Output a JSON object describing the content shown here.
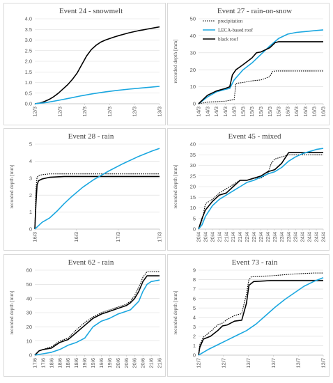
{
  "colors": {
    "precipitation": "#000000",
    "leca": "#1aa7e0",
    "black": "#000000",
    "grid": "#d9d9d9"
  },
  "chart_data": [
    {
      "type": "line",
      "title": "Event 24 - snowmelt",
      "ylabel": "",
      "ylim": [
        0,
        4
      ],
      "yticks": [
        "0.0",
        "0.5",
        "1.0",
        "1.5",
        "2.0",
        "2.5",
        "3.0",
        "3.5",
        "4.0"
      ],
      "xticks": [
        "12/3",
        "12/3",
        "12/3",
        "12/3",
        "12/3",
        "13/3"
      ],
      "legend": [],
      "series": [
        {
          "name": "",
          "key": "black",
          "style": "solid",
          "x": [
            0,
            0.2,
            0.4,
            0.6,
            0.8,
            1.0,
            1.2,
            1.4,
            1.6,
            1.8,
            2.0,
            2.2,
            2.4,
            2.6,
            2.8,
            3.0,
            3.2,
            3.4,
            3.6,
            3.8,
            4.0,
            4.2,
            4.4,
            4.6,
            4.8,
            5.0,
            5.3
          ],
          "y": [
            0,
            0.03,
            0.1,
            0.2,
            0.33,
            0.5,
            0.7,
            0.9,
            1.15,
            1.45,
            1.85,
            2.25,
            2.55,
            2.75,
            2.9,
            3.0,
            3.08,
            3.15,
            3.22,
            3.28,
            3.34,
            3.39,
            3.44,
            3.48,
            3.52,
            3.56,
            3.62
          ]
        },
        {
          "name": "",
          "key": "leca",
          "style": "solid",
          "x": [
            0,
            0.5,
            1.0,
            1.5,
            2.0,
            2.5,
            3.0,
            3.5,
            4.0,
            4.5,
            5.0,
            5.3
          ],
          "y": [
            0,
            0.06,
            0.16,
            0.27,
            0.38,
            0.48,
            0.56,
            0.63,
            0.69,
            0.74,
            0.79,
            0.82
          ]
        }
      ]
    },
    {
      "type": "line",
      "title": "Event 27 - rain-on-snow",
      "ylabel": "recorded depth [mm]",
      "ylim": [
        0,
        50
      ],
      "yticks": [
        "0",
        "10",
        "20",
        "30",
        "40",
        "50"
      ],
      "xticks": [
        "14/3",
        "14/3",
        "14/3",
        "14/3",
        "14/3",
        "15/3",
        "15/3",
        "15/3",
        "15/3",
        "15/3",
        "16/3",
        "16/3",
        "16/3",
        "16/3",
        "16/3"
      ],
      "legend": [
        "precipitation",
        "LECA-based roof",
        "black roof"
      ],
      "series": [
        {
          "name": "precipitation",
          "key": "precipitation",
          "style": "dotted",
          "x": [
            0,
            1,
            2,
            3,
            3.5,
            4.0,
            4.2,
            5,
            6,
            7,
            8,
            8.3,
            8.7,
            9,
            10,
            14
          ],
          "y": [
            0,
            1,
            1.2,
            1.5,
            2,
            2.5,
            12,
            12.5,
            13.5,
            14,
            16,
            19,
            19.3,
            19.3,
            19.3,
            19.3
          ]
        },
        {
          "name": "LECA-based roof",
          "key": "leca",
          "style": "solid",
          "x": [
            0,
            1,
            2,
            3,
            3.5,
            4,
            4.5,
            5,
            6,
            7,
            8,
            9,
            10,
            11,
            12,
            13,
            14
          ],
          "y": [
            0,
            4,
            7,
            8.5,
            9,
            14,
            17,
            20,
            24,
            29,
            34,
            38.5,
            41,
            42,
            42.5,
            43,
            43.5
          ]
        },
        {
          "name": "black roof",
          "key": "black",
          "style": "solid",
          "x": [
            0,
            1,
            2,
            3,
            3.5,
            3.8,
            4.2,
            5,
            6,
            6.5,
            7,
            8,
            8.6,
            9,
            10,
            11,
            12,
            13,
            14
          ],
          "y": [
            0,
            5,
            7.5,
            9,
            10,
            17,
            20,
            23,
            27,
            30,
            30.5,
            33,
            36,
            36.5,
            36.5,
            36.5,
            36.5,
            36.5,
            36.5
          ]
        }
      ]
    },
    {
      "type": "line",
      "title": "Event 28 - rain",
      "ylabel": "recorded depth [mm]",
      "ylim": [
        0,
        5
      ],
      "yticks": [
        "0",
        "1",
        "2",
        "3",
        "4",
        "5"
      ],
      "xticks": [
        "16/3",
        "16/3",
        "17/3",
        "17/3"
      ],
      "legend": [],
      "series": [
        {
          "name": "",
          "key": "precipitation",
          "style": "dotted",
          "x": [
            0,
            0.03,
            0.06,
            0.1,
            0.2,
            0.4,
            3.4
          ],
          "y": [
            0,
            2.4,
            3.05,
            3.15,
            3.2,
            3.25,
            3.25
          ]
        },
        {
          "name": "",
          "key": "black",
          "style": "solid",
          "x": [
            0,
            0.03,
            0.06,
            0.1,
            0.2,
            0.4,
            0.8,
            3.4
          ],
          "y": [
            0,
            1.5,
            2.6,
            2.85,
            2.95,
            3.05,
            3.1,
            3.1
          ]
        },
        {
          "name": "",
          "key": "leca",
          "style": "solid",
          "x": [
            0,
            0.2,
            0.4,
            0.6,
            0.8,
            1.0,
            1.3,
            1.6,
            2.0,
            2.4,
            2.8,
            3.2,
            3.4
          ],
          "y": [
            0,
            0.4,
            0.65,
            1.05,
            1.5,
            1.9,
            2.45,
            2.9,
            3.4,
            3.85,
            4.25,
            4.6,
            4.75
          ]
        }
      ]
    },
    {
      "type": "line",
      "title": "Event 45 - mixed",
      "ylabel": "recorded depth [mm]",
      "ylim": [
        0,
        40
      ],
      "yticks": [
        "0",
        "5",
        "10",
        "15",
        "20",
        "25",
        "30",
        "35",
        "40"
      ],
      "xticks": [
        "20/4",
        "20/4",
        "20/4",
        "21/4",
        "21/4",
        "21/4",
        "21/4",
        "22/4",
        "22/4",
        "22/4",
        "22/4",
        "23/4",
        "23/4",
        "23/4",
        "23/4",
        "24/4",
        "24/4",
        "24/4",
        "24/4"
      ],
      "legend": [],
      "series": [
        {
          "name": "",
          "key": "precipitation",
          "style": "dotted",
          "x": [
            0,
            0.5,
            1,
            2,
            3,
            4,
            5,
            6,
            7,
            8,
            9,
            10,
            10.5,
            11,
            12,
            13,
            14,
            15,
            16,
            17,
            18
          ],
          "y": [
            0,
            4,
            12,
            14,
            17,
            19,
            21,
            23,
            23,
            24,
            24,
            26,
            31,
            33,
            34,
            35,
            35,
            35,
            35,
            35,
            35
          ]
        },
        {
          "name": "",
          "key": "black",
          "style": "solid",
          "x": [
            0,
            0.5,
            1,
            2,
            3,
            4,
            5,
            6,
            7,
            8,
            9,
            10,
            11,
            12,
            13,
            14,
            15,
            16,
            17,
            18
          ],
          "y": [
            0,
            5,
            9,
            13,
            16,
            17,
            20,
            23,
            23,
            24,
            25,
            27,
            28,
            31,
            36,
            36,
            36,
            36,
            36,
            36
          ]
        },
        {
          "name": "",
          "key": "leca",
          "style": "solid",
          "x": [
            0,
            0.5,
            1,
            2,
            3,
            4,
            5,
            6,
            7,
            8,
            9,
            10,
            11,
            12,
            13,
            14,
            15,
            16,
            17,
            18
          ],
          "y": [
            0,
            2,
            6,
            11,
            14,
            16,
            18,
            20,
            22,
            23,
            24.5,
            26,
            27,
            29,
            32,
            34,
            35.5,
            36.5,
            37.5,
            38
          ]
        }
      ]
    },
    {
      "type": "line",
      "title": "Event 62 - rain",
      "ylabel": "recorded depth [mm]",
      "ylim": [
        0,
        60
      ],
      "yticks": [
        "0",
        "10",
        "20",
        "30",
        "40",
        "50",
        "60"
      ],
      "xticks": [
        "17/6",
        "17/6",
        "18/6",
        "18/6",
        "18/6",
        "18/6",
        "19/6",
        "19/6",
        "19/6",
        "19/6",
        "20/6",
        "20/6",
        "20/6",
        "20/6",
        "21/6",
        "21/6"
      ],
      "legend": [],
      "series": [
        {
          "name": "",
          "key": "precipitation",
          "style": "dotted",
          "x": [
            0,
            0.5,
            1,
            2,
            3,
            4,
            5,
            6,
            7,
            8,
            9,
            10,
            11,
            11.5,
            12,
            12.5,
            13,
            13.5,
            14,
            15
          ],
          "y": [
            0,
            3,
            4,
            6,
            10,
            12,
            18,
            23,
            27,
            30,
            32,
            34,
            36,
            38,
            42,
            48,
            55,
            59,
            59,
            59
          ]
        },
        {
          "name": "",
          "key": "black",
          "style": "solid",
          "x": [
            0,
            0.5,
            1,
            2,
            3,
            4,
            5,
            6,
            7,
            8,
            9,
            10,
            11,
            11.5,
            12,
            12.5,
            13,
            13.5,
            14,
            15
          ],
          "y": [
            0,
            3,
            4,
            5,
            9,
            11,
            16,
            21,
            26,
            29,
            31,
            33,
            35,
            37,
            40,
            45,
            52,
            56,
            56,
            56
          ]
        },
        {
          "name": "",
          "key": "leca",
          "style": "solid",
          "x": [
            0,
            0.5,
            1,
            2,
            3,
            4,
            5,
            6,
            7,
            8,
            9,
            10,
            11,
            11.5,
            12,
            12.5,
            13,
            13.5,
            14,
            15
          ],
          "y": [
            0,
            0.5,
            1,
            2,
            4,
            7,
            9,
            12,
            20,
            24,
            26,
            29,
            31,
            32,
            35,
            38,
            45,
            50,
            52,
            53
          ]
        }
      ]
    },
    {
      "type": "line",
      "title": "Event 73 - rain",
      "ylabel": "recorded depth [mm]",
      "ylim": [
        0,
        9
      ],
      "yticks": [
        "0",
        "1",
        "2",
        "3",
        "4",
        "5",
        "6",
        "7",
        "8",
        "9"
      ],
      "xticks": [
        "12/7",
        "12/7",
        "13/7",
        "13/7",
        "13/7",
        "13/7"
      ],
      "legend": [],
      "series": [
        {
          "name": "",
          "key": "precipitation",
          "style": "dotted",
          "x": [
            0,
            0.05,
            0.2,
            0.5,
            0.8,
            1.0,
            1.2,
            1.5,
            1.8,
            2.0,
            2.1,
            2.2,
            3.0,
            4.0,
            4.8,
            5.2
          ],
          "y": [
            0,
            1.1,
            1.9,
            2.5,
            3.2,
            3.4,
            3.8,
            4.2,
            4.4,
            6.5,
            8.0,
            8.3,
            8.4,
            8.6,
            8.7,
            8.7
          ]
        },
        {
          "name": "",
          "key": "black",
          "style": "solid",
          "x": [
            0,
            0.05,
            0.2,
            0.5,
            0.8,
            1.0,
            1.2,
            1.5,
            1.8,
            2.0,
            2.1,
            2.3,
            3.0,
            4.0,
            5.2
          ],
          "y": [
            0,
            0.8,
            1.7,
            2.0,
            2.6,
            3.1,
            3.2,
            3.6,
            3.7,
            5.5,
            7.4,
            7.8,
            7.9,
            7.9,
            7.9
          ]
        },
        {
          "name": "",
          "key": "leca",
          "style": "solid",
          "x": [
            0,
            0.4,
            0.8,
            1.2,
            1.6,
            2.0,
            2.4,
            2.8,
            3.2,
            3.6,
            4.0,
            4.4,
            4.8,
            5.2
          ],
          "y": [
            0,
            0.6,
            1.1,
            1.6,
            2.1,
            2.6,
            3.3,
            4.2,
            5.1,
            5.9,
            6.6,
            7.3,
            7.8,
            8.2
          ]
        }
      ]
    }
  ]
}
